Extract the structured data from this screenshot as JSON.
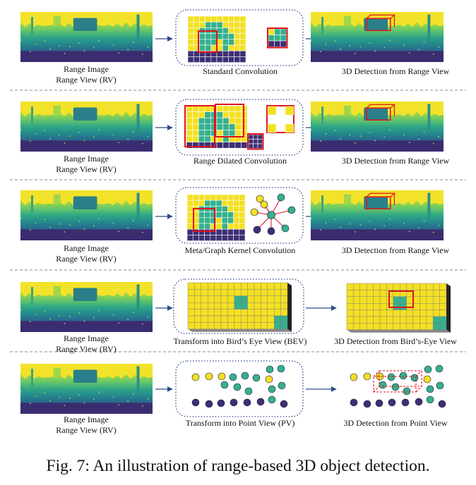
{
  "rows": [
    {
      "left_caption": [
        "Range Image",
        "Range View (RV)"
      ],
      "middle_caption": "Standard Convolution",
      "right_caption": "3D Detection from Range View"
    },
    {
      "left_caption": [
        "Range Image",
        "Range View (RV)"
      ],
      "middle_caption": "Range Dilated Convolution",
      "right_caption": "3D Detection from Range View"
    },
    {
      "left_caption": [
        "Range Image",
        "Range View (RV)"
      ],
      "middle_caption": "Meta/Graph Kernel Convolution",
      "right_caption": "3D Detection from Range View"
    },
    {
      "left_caption": [
        "Range Image",
        "Range View (RV)"
      ],
      "middle_caption": "Transform into Bird’s Eye View (BEV)",
      "right_caption": "3D Detection from Bird’s-Eye View"
    },
    {
      "left_caption": [
        "Range Image",
        "Range View (RV)"
      ],
      "middle_caption": "Transform into Point View (PV)",
      "right_caption": "3D Detection from Point View"
    }
  ],
  "figure_caption": "Fig. 7: An illustration of range-based 3D object detection.",
  "colors": {
    "yellow": "#f4e023",
    "teal": "#35b08e",
    "navy": "#3d2f74",
    "red": "#e0121a",
    "dotted_border": "#2f4a88",
    "arrow": "#2f4a88"
  }
}
